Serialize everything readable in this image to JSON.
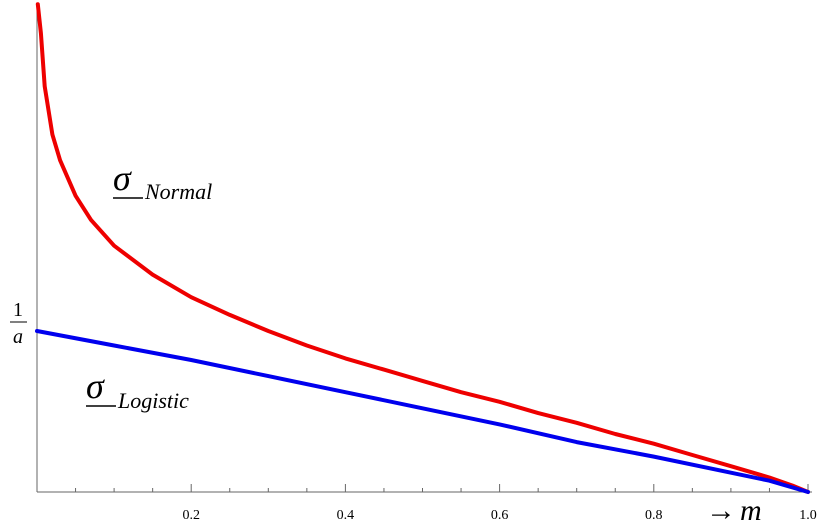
{
  "chart_data": {
    "type": "line",
    "xlim": [
      0,
      1.0
    ],
    "x_ticks": [
      {
        "value": 0.2,
        "label": "0.2"
      },
      {
        "value": 0.4,
        "label": "0.4"
      },
      {
        "value": 0.6,
        "label": "0.6"
      },
      {
        "value": 0.8,
        "label": "0.8"
      },
      {
        "value": 1.0,
        "label": "1.0"
      }
    ],
    "x_axis_label": {
      "arrow": "→",
      "variable": "m"
    },
    "y_tick": {
      "numerator": "1",
      "denominator": "a"
    },
    "grid": false,
    "series": [
      {
        "name_symbol": "σ",
        "name_subscript": "Normal",
        "color": "#ee0000",
        "x": [
          0.001,
          0.005,
          0.01,
          0.02,
          0.03,
          0.05,
          0.07,
          0.1,
          0.15,
          0.2,
          0.25,
          0.3,
          0.35,
          0.4,
          0.45,
          0.5,
          0.55,
          0.6,
          0.65,
          0.7,
          0.75,
          0.8,
          0.85,
          0.9,
          0.95,
          0.98,
          1.0
        ],
        "y": [
          3.03,
          2.85,
          2.52,
          2.22,
          2.06,
          1.84,
          1.69,
          1.53,
          1.35,
          1.21,
          1.1,
          1.0,
          0.91,
          0.83,
          0.76,
          0.69,
          0.62,
          0.56,
          0.49,
          0.43,
          0.36,
          0.3,
          0.23,
          0.16,
          0.09,
          0.04,
          0.0
        ]
      },
      {
        "name_symbol": "σ",
        "name_subscript": "Logistic",
        "color": "#0000ee",
        "x": [
          0,
          0.1,
          0.2,
          0.3,
          0.4,
          0.5,
          0.6,
          0.7,
          0.8,
          0.9,
          0.95,
          1.0
        ],
        "y": [
          1.0,
          0.91,
          0.82,
          0.72,
          0.62,
          0.52,
          0.42,
          0.31,
          0.22,
          0.12,
          0.07,
          0.0
        ]
      }
    ]
  }
}
